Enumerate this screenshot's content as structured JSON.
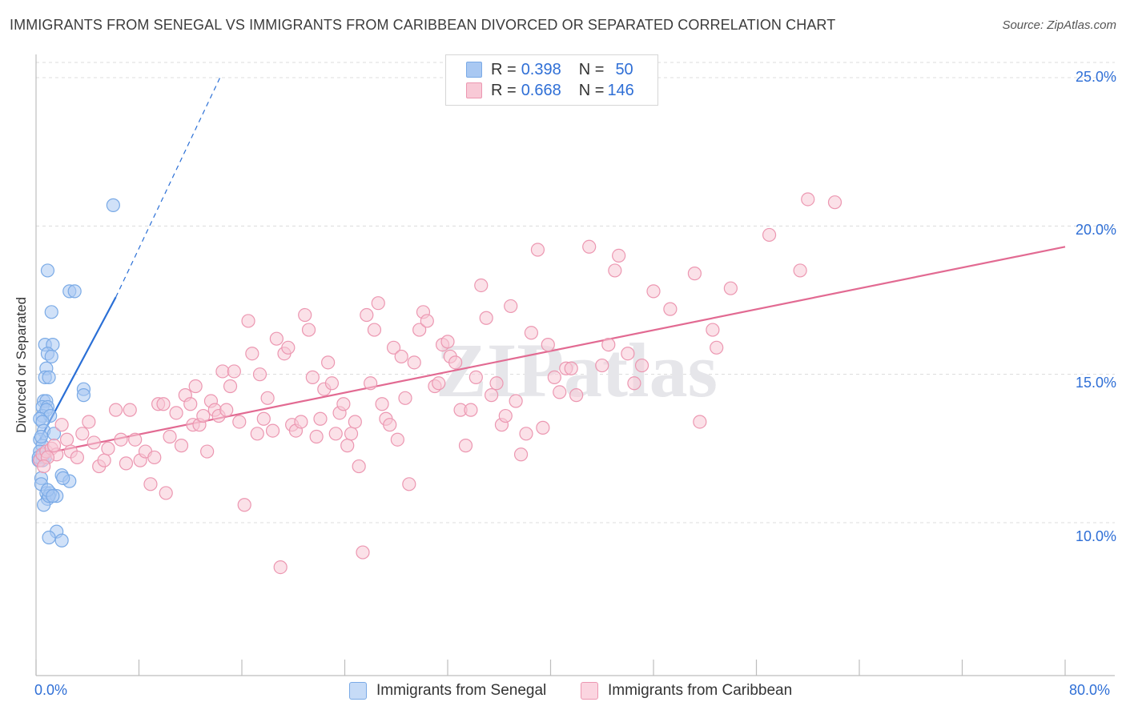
{
  "title": "IMMIGRANTS FROM SENEGAL VS IMMIGRANTS FROM CARIBBEAN DIVORCED OR SEPARATED CORRELATION CHART",
  "source": "Source: ZipAtlas.com",
  "watermark": "ZIPatlas",
  "legend_top": {
    "rows": [
      {
        "r_label": "R = ",
        "r_value": "0.398",
        "n_label": "N = ",
        "n_value": "50",
        "color": "#a9c8f2"
      },
      {
        "r_label": "R = ",
        "r_value": "0.668",
        "n_label": "N = ",
        "n_value": "146",
        "color": "#f6b8cb"
      }
    ]
  },
  "legend_bottom": [
    {
      "label": "Immigrants from Senegal",
      "color": "#a9c8f2",
      "border": "#7aaae6"
    },
    {
      "label": "Immigrants from Caribbean",
      "color": "#f8c9d6",
      "border": "#ec97b1"
    }
  ],
  "chart_data": {
    "type": "scatter",
    "title": "IMMIGRANTS FROM SENEGAL VS IMMIGRANTS FROM CARIBBEAN DIVORCED OR SEPARATED CORRELATION CHART",
    "xlabel": "",
    "ylabel": "Divorced or Separated",
    "xlim": [
      0,
      80
    ],
    "ylim": [
      5,
      26
    ],
    "x_tick_labels": [
      "0.0%",
      "80.0%"
    ],
    "y_ticks": [
      10,
      15,
      20,
      25
    ],
    "y_tick_labels": [
      "10.0%",
      "15.0%",
      "20.0%",
      "25.0%"
    ],
    "grid": true,
    "series": [
      {
        "name": "Immigrants from Senegal",
        "color": "#7aaae6",
        "fill": "#a9c8f2",
        "trend": {
          "x": [
            0.3,
            6.2
          ],
          "y": [
            12.8,
            17.6
          ],
          "extrapolate_to": [
            14.3,
            25.0
          ],
          "color": "#2a6fd6"
        },
        "points": [
          [
            6.0,
            20.7
          ],
          [
            0.9,
            18.5
          ],
          [
            2.6,
            17.8
          ],
          [
            3.0,
            17.8
          ],
          [
            1.2,
            17.1
          ],
          [
            0.7,
            16.0
          ],
          [
            1.3,
            16.0
          ],
          [
            0.9,
            15.7
          ],
          [
            1.2,
            15.6
          ],
          [
            0.8,
            15.2
          ],
          [
            0.7,
            14.9
          ],
          [
            1.0,
            14.9
          ],
          [
            3.7,
            14.5
          ],
          [
            3.7,
            14.3
          ],
          [
            0.6,
            14.1
          ],
          [
            0.8,
            14.1
          ],
          [
            0.5,
            13.9
          ],
          [
            0.9,
            13.9
          ],
          [
            0.5,
            13.6
          ],
          [
            0.8,
            13.8
          ],
          [
            1.1,
            13.6
          ],
          [
            0.3,
            13.5
          ],
          [
            0.5,
            13.4
          ],
          [
            0.6,
            13.1
          ],
          [
            1.4,
            13.0
          ],
          [
            0.3,
            12.8
          ],
          [
            0.5,
            12.6
          ],
          [
            0.3,
            12.4
          ],
          [
            0.6,
            12.3
          ],
          [
            0.2,
            12.1
          ],
          [
            0.5,
            12.1
          ],
          [
            0.4,
            11.5
          ],
          [
            2.0,
            11.6
          ],
          [
            2.6,
            11.4
          ],
          [
            0.4,
            11.3
          ],
          [
            2.1,
            11.5
          ],
          [
            0.8,
            11.0
          ],
          [
            1.1,
            11.0
          ],
          [
            0.9,
            10.8
          ],
          [
            1.6,
            10.9
          ],
          [
            0.6,
            10.6
          ],
          [
            1.0,
            10.9
          ],
          [
            1.6,
            9.7
          ],
          [
            1.0,
            9.5
          ],
          [
            2.0,
            9.4
          ],
          [
            0.2,
            12.2
          ],
          [
            0.4,
            12.9
          ],
          [
            0.7,
            12.2
          ],
          [
            0.9,
            11.1
          ],
          [
            1.3,
            10.9
          ]
        ]
      },
      {
        "name": "Immigrants from Caribbean",
        "color": "#ec97b1",
        "fill": "#f8c9d6",
        "trend": {
          "x": [
            0.3,
            80.0
          ],
          "y": [
            12.3,
            19.3
          ],
          "color": "#e26a92"
        },
        "points": [
          [
            0.3,
            12.1
          ],
          [
            0.5,
            12.3
          ],
          [
            0.8,
            12.4
          ],
          [
            1.2,
            12.5
          ],
          [
            1.6,
            12.3
          ],
          [
            2.0,
            13.3
          ],
          [
            2.4,
            12.8
          ],
          [
            2.7,
            12.4
          ],
          [
            3.2,
            12.2
          ],
          [
            3.6,
            13.0
          ],
          [
            4.1,
            13.4
          ],
          [
            4.5,
            12.7
          ],
          [
            4.9,
            11.9
          ],
          [
            5.3,
            12.1
          ],
          [
            5.6,
            12.5
          ],
          [
            6.2,
            13.8
          ],
          [
            6.6,
            12.8
          ],
          [
            7.0,
            12.0
          ],
          [
            7.3,
            13.8
          ],
          [
            7.7,
            12.8
          ],
          [
            8.1,
            12.1
          ],
          [
            8.5,
            12.4
          ],
          [
            8.9,
            11.3
          ],
          [
            9.2,
            12.2
          ],
          [
            9.5,
            14.0
          ],
          [
            9.9,
            14.0
          ],
          [
            10.1,
            11.0
          ],
          [
            10.4,
            12.9
          ],
          [
            10.9,
            13.7
          ],
          [
            11.3,
            12.6
          ],
          [
            11.6,
            14.3
          ],
          [
            12.0,
            14.0
          ],
          [
            12.2,
            13.3
          ],
          [
            12.4,
            14.6
          ],
          [
            12.7,
            13.3
          ],
          [
            13.0,
            13.6
          ],
          [
            13.3,
            12.4
          ],
          [
            13.6,
            14.1
          ],
          [
            13.9,
            13.8
          ],
          [
            14.2,
            13.6
          ],
          [
            14.5,
            15.1
          ],
          [
            14.8,
            13.8
          ],
          [
            15.1,
            14.6
          ],
          [
            15.4,
            15.1
          ],
          [
            15.8,
            13.4
          ],
          [
            16.2,
            10.6
          ],
          [
            16.5,
            16.8
          ],
          [
            16.8,
            15.7
          ],
          [
            17.2,
            13.0
          ],
          [
            17.4,
            15.0
          ],
          [
            17.7,
            13.5
          ],
          [
            18.0,
            14.2
          ],
          [
            18.4,
            13.1
          ],
          [
            18.7,
            16.2
          ],
          [
            19.0,
            8.5
          ],
          [
            19.3,
            15.7
          ],
          [
            19.6,
            15.9
          ],
          [
            19.9,
            13.3
          ],
          [
            20.2,
            13.1
          ],
          [
            20.6,
            13.4
          ],
          [
            20.9,
            17.0
          ],
          [
            21.2,
            16.5
          ],
          [
            21.5,
            14.9
          ],
          [
            21.8,
            12.9
          ],
          [
            22.1,
            13.5
          ],
          [
            22.4,
            14.5
          ],
          [
            22.7,
            15.4
          ],
          [
            23.0,
            14.7
          ],
          [
            23.3,
            13.0
          ],
          [
            23.6,
            13.7
          ],
          [
            23.9,
            14.0
          ],
          [
            24.2,
            12.6
          ],
          [
            24.5,
            13.0
          ],
          [
            24.8,
            13.4
          ],
          [
            25.1,
            11.9
          ],
          [
            25.4,
            9.0
          ],
          [
            25.7,
            17.0
          ],
          [
            26.0,
            14.7
          ],
          [
            26.3,
            16.5
          ],
          [
            26.6,
            17.4
          ],
          [
            26.9,
            14.0
          ],
          [
            27.2,
            13.5
          ],
          [
            27.5,
            13.3
          ],
          [
            27.8,
            15.9
          ],
          [
            28.1,
            12.8
          ],
          [
            28.4,
            15.6
          ],
          [
            28.7,
            14.2
          ],
          [
            29.0,
            11.3
          ],
          [
            29.4,
            15.4
          ],
          [
            29.8,
            16.5
          ],
          [
            30.1,
            17.1
          ],
          [
            30.4,
            16.8
          ],
          [
            31.0,
            14.6
          ],
          [
            31.3,
            14.7
          ],
          [
            31.6,
            16.0
          ],
          [
            32.0,
            16.1
          ],
          [
            32.2,
            15.6
          ],
          [
            32.6,
            15.4
          ],
          [
            33.0,
            13.8
          ],
          [
            33.4,
            12.6
          ],
          [
            33.8,
            13.8
          ],
          [
            34.2,
            14.9
          ],
          [
            34.6,
            18.0
          ],
          [
            35.0,
            16.9
          ],
          [
            35.4,
            14.3
          ],
          [
            35.8,
            14.7
          ],
          [
            36.2,
            13.3
          ],
          [
            36.5,
            13.6
          ],
          [
            36.9,
            17.3
          ],
          [
            37.3,
            14.1
          ],
          [
            37.7,
            12.3
          ],
          [
            38.1,
            13.0
          ],
          [
            38.5,
            16.4
          ],
          [
            39.0,
            19.2
          ],
          [
            39.4,
            13.2
          ],
          [
            39.8,
            16.0
          ],
          [
            40.3,
            14.9
          ],
          [
            40.7,
            14.4
          ],
          [
            41.2,
            15.2
          ],
          [
            41.6,
            15.2
          ],
          [
            42.0,
            14.3
          ],
          [
            43.0,
            19.3
          ],
          [
            44.0,
            15.3
          ],
          [
            44.5,
            16.0
          ],
          [
            45.0,
            18.5
          ],
          [
            45.3,
            19.0
          ],
          [
            46.0,
            15.7
          ],
          [
            46.5,
            14.7
          ],
          [
            47.1,
            15.3
          ],
          [
            48.0,
            17.8
          ],
          [
            49.3,
            17.2
          ],
          [
            51.2,
            18.4
          ],
          [
            51.6,
            13.4
          ],
          [
            52.6,
            16.5
          ],
          [
            52.9,
            15.9
          ],
          [
            54.0,
            17.9
          ],
          [
            57.0,
            19.7
          ],
          [
            59.4,
            18.5
          ],
          [
            60.0,
            20.9
          ],
          [
            62.1,
            20.8
          ],
          [
            0.9,
            12.2
          ],
          [
            1.4,
            12.6
          ],
          [
            0.6,
            11.9
          ]
        ]
      }
    ]
  }
}
